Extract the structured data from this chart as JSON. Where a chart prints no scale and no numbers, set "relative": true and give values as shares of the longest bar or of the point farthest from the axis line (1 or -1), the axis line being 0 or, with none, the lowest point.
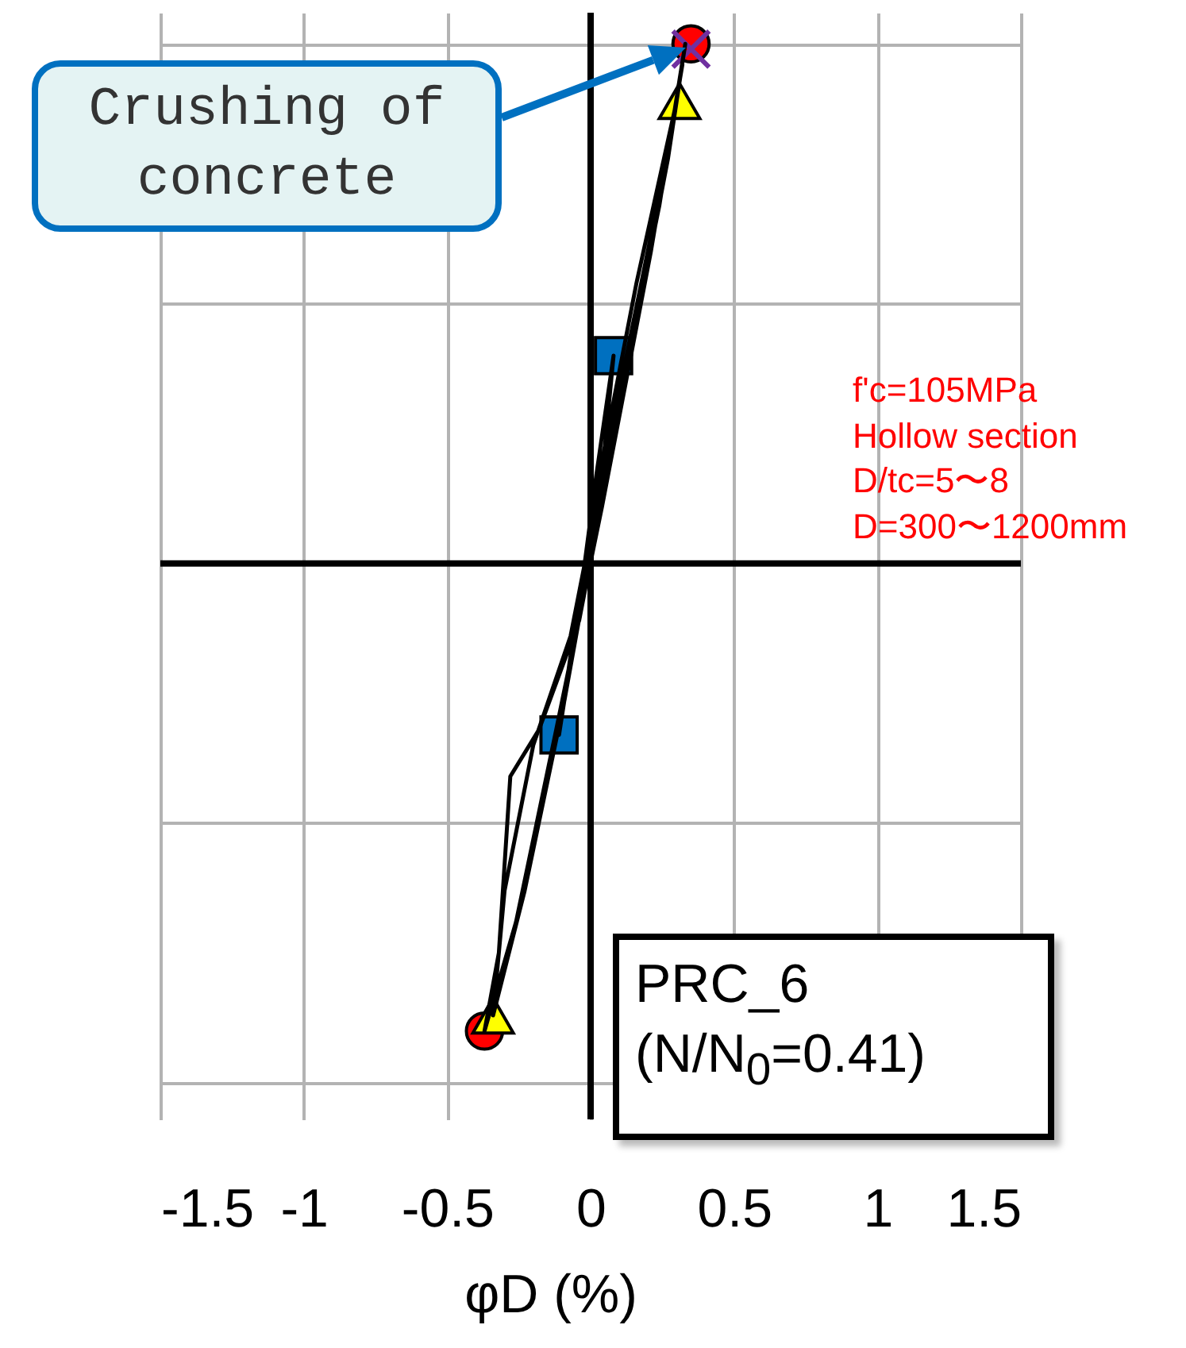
{
  "chart_data": {
    "type": "line",
    "relative": true,
    "xlabel": "φD (%)",
    "xlim": [
      -1.5,
      1.5
    ],
    "xticks": [
      -1.5,
      -1,
      -0.5,
      0,
      0.5,
      1,
      1.5
    ],
    "grid": true,
    "series": [
      {
        "color": "#000000",
        "marker": "none",
        "x": [
          0,
          0.04,
          0.08,
          0.02,
          -0.04,
          -0.11,
          -0.06,
          0.03,
          0.16,
          0.3,
          0.21,
          0.04,
          -0.07,
          -0.2,
          -0.3,
          -0.34,
          -0.23,
          -0.09,
          0.07,
          0.24,
          0.33,
          0.27,
          0.1,
          -0.04,
          -0.18,
          -0.28,
          -0.32,
          -0.37,
          -0.26,
          -0.12,
          0.04,
          0.21,
          0.32
        ],
        "values": [
          0,
          0.17,
          0.4,
          0.17,
          -0.08,
          -0.33,
          -0.14,
          0.17,
          0.54,
          0.89,
          0.63,
          0.17,
          -0.14,
          -0.35,
          -0.63,
          -0.87,
          -0.63,
          -0.26,
          0.23,
          0.69,
          1.0,
          0.78,
          0.29,
          -0.11,
          -0.32,
          -0.41,
          -0.75,
          -0.9,
          -0.69,
          -0.32,
          0.11,
          0.6,
          0.96
        ]
      },
      {
        "type": "scatter",
        "color": "#ff0000",
        "marker": "circle",
        "x": [
          0.35,
          -0.37
        ],
        "values": [
          1.0,
          -0.9
        ]
      },
      {
        "type": "scatter",
        "color": "#ffff00",
        "marker": "triangle",
        "x": [
          0.31,
          -0.34
        ],
        "values": [
          0.89,
          -0.87
        ]
      },
      {
        "type": "scatter",
        "color": "#0070c0",
        "marker": "square",
        "x": [
          0.08,
          -0.11
        ],
        "values": [
          0.4,
          -0.33
        ]
      },
      {
        "type": "scatter",
        "color": "#7030a0",
        "marker": "cross",
        "x": [
          0.35
        ],
        "values": [
          0.99
        ]
      }
    ],
    "annotations": [
      "Crushing of concrete",
      "f'c=105MPa\nHollow section\nD/tc=5〜8\nD=300〜1200mm",
      "PRC_6\n(N/N$_{0}$=0.41)"
    ]
  }
}
